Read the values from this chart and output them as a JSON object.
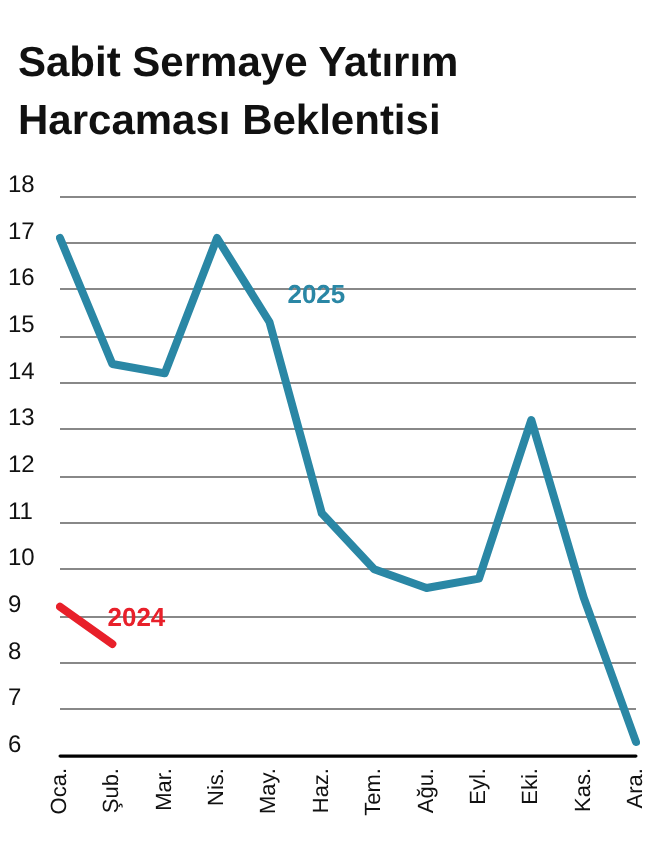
{
  "chart_data": {
    "type": "line",
    "title": "Sabit Sermaye Yatırım\nHarcaması Beklentisi",
    "categories": [
      "Oca.",
      "Şub.",
      "Mar.",
      "Nis.",
      "May.",
      "Haz.",
      "Tem.",
      "Ağu.",
      "Eyl.",
      "Eki.",
      "Kas.",
      "Ara."
    ],
    "series": [
      {
        "name": "2025",
        "color": "#2a87a5",
        "values": [
          17.1,
          14.4,
          14.2,
          17.1,
          15.3,
          11.2,
          10.0,
          9.6,
          9.8,
          13.2,
          9.4,
          6.3
        ]
      },
      {
        "name": "2024",
        "color": "#e8202a",
        "values": [
          9.2,
          8.4,
          null,
          null,
          null,
          null,
          null,
          null,
          null,
          null,
          null,
          null
        ]
      }
    ],
    "ylim": [
      6,
      18
    ],
    "yticks": [
      6,
      7,
      8,
      9,
      10,
      11,
      12,
      13,
      14,
      15,
      16,
      17,
      18
    ],
    "grid": "y",
    "legend": false,
    "marker": "none"
  }
}
